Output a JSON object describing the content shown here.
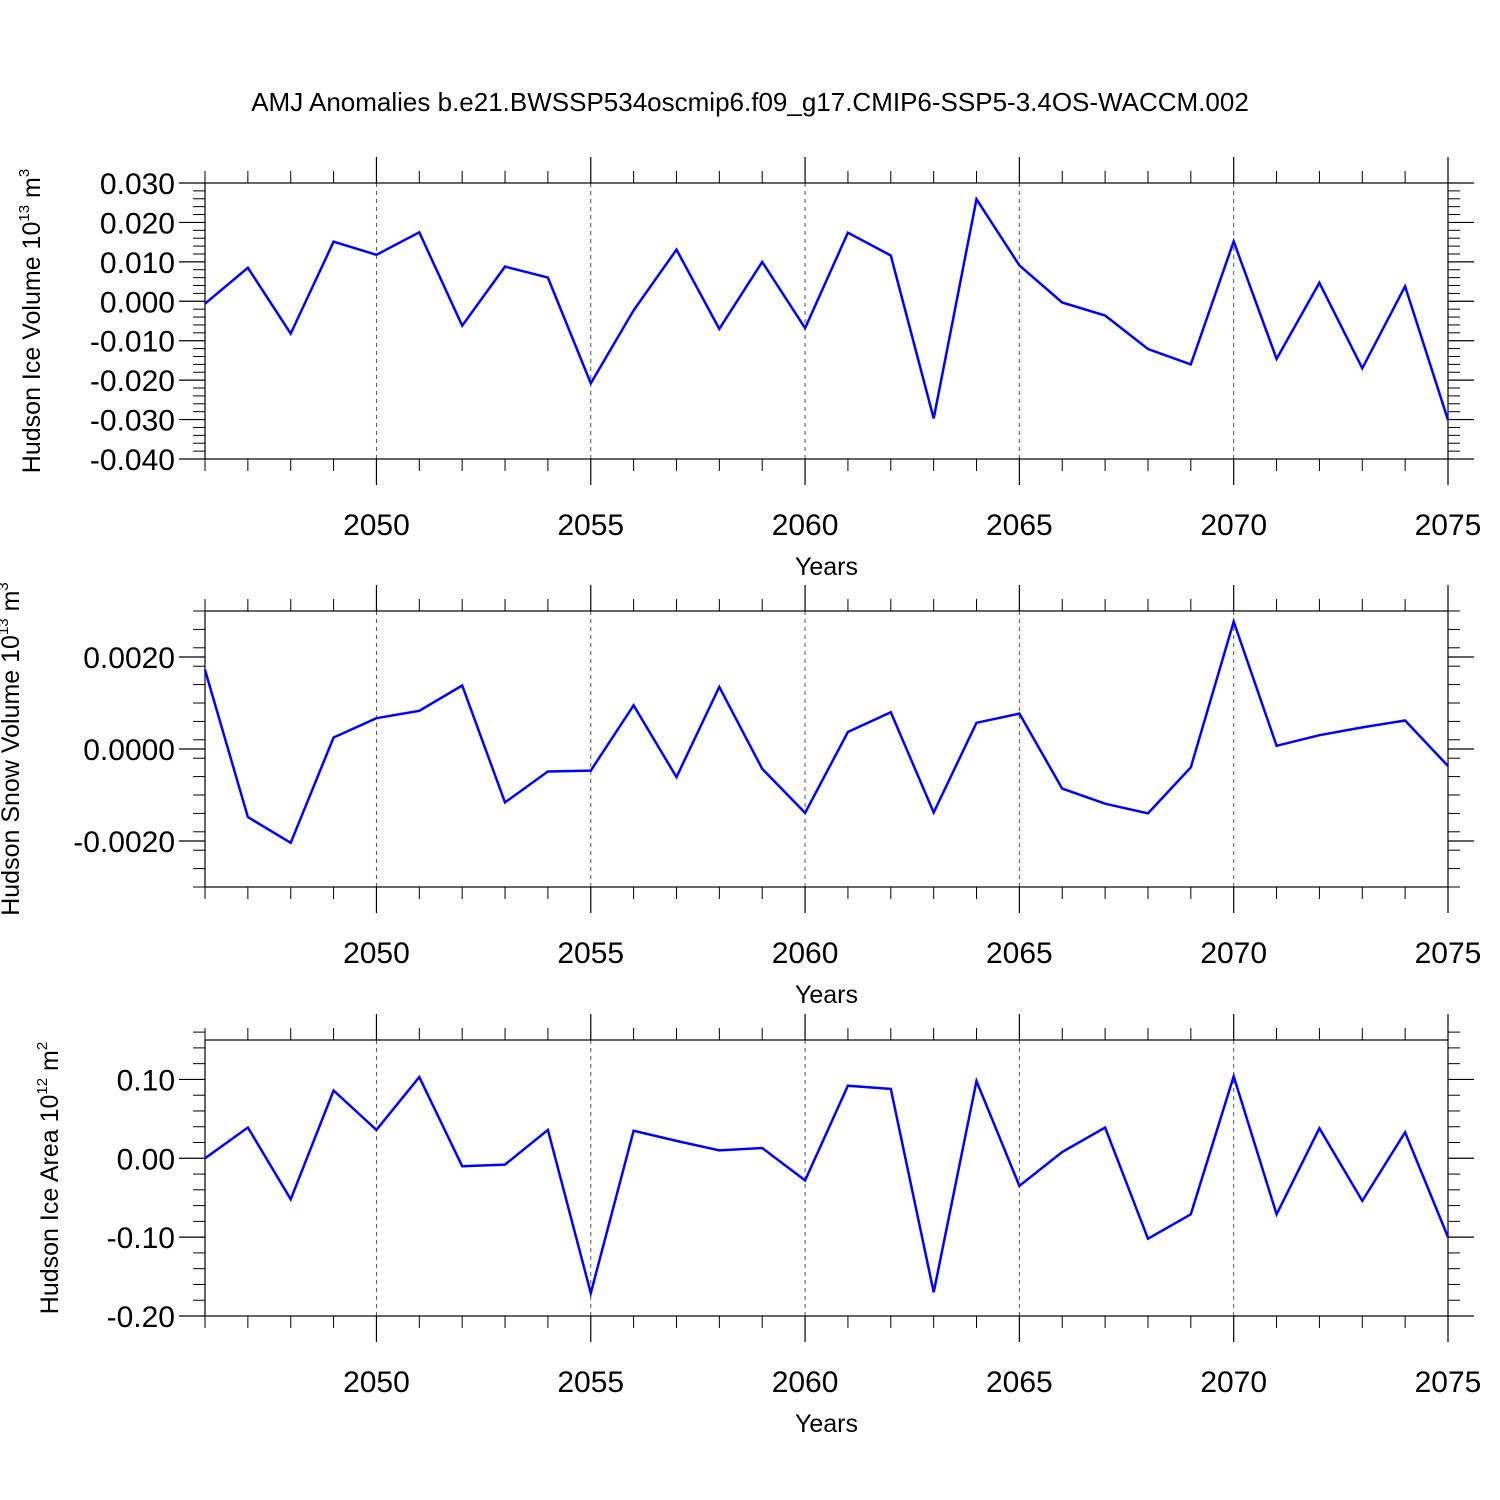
{
  "figure": {
    "title": "AMJ Anomalies b.e21.BWSSP534oscmip6.f09_g17.CMIP6-SSP5-3.4OS-WACCM.002"
  },
  "chart_data": [
    {
      "type": "line",
      "title": "",
      "xlabel": "Years",
      "ylabel": "Hudson Ice Volume 10",
      "ylabel_exponent": "13",
      "ylabel_unit": "m",
      "ylabel_unit_exponent": "3",
      "xlim": [
        2046,
        2075
      ],
      "ylim": [
        -0.04,
        0.03
      ],
      "x_ticks": [
        2050,
        2055,
        2060,
        2065,
        2070,
        2075
      ],
      "x_tick_labels": [
        "2050",
        "2055",
        "2060",
        "2065",
        "2070",
        "2075"
      ],
      "y_ticks": [
        -0.04,
        -0.03,
        -0.02,
        -0.01,
        0.0,
        0.01,
        0.02,
        0.03
      ],
      "y_tick_labels": [
        "-0.040",
        "-0.030",
        "-0.020",
        "-0.010",
        "0.000",
        "0.010",
        "0.020",
        "0.030"
      ],
      "grid": "vertical dashed at major x ticks",
      "line_color": "#0000ff",
      "series": [
        {
          "x": [
            2046,
            2047,
            2048,
            2049,
            2050,
            2051,
            2052,
            2053,
            2054,
            2055,
            2056,
            2057,
            2058,
            2059,
            2060,
            2061,
            2062,
            2063,
            2064,
            2065,
            2066,
            2067,
            2068,
            2069,
            2070,
            2071,
            2072,
            2073,
            2074,
            2075
          ],
          "values": [
            -0.0006,
            0.0085,
            -0.0082,
            0.0151,
            0.0118,
            0.0175,
            -0.0062,
            0.0088,
            0.006,
            -0.0208,
            -0.0023,
            0.0131,
            -0.007,
            0.01,
            -0.0068,
            0.0174,
            0.0116,
            -0.0297,
            0.0259,
            0.0091,
            -0.0003,
            -0.0036,
            -0.0121,
            -0.016,
            0.0152,
            -0.0146,
            0.0047,
            -0.017,
            0.0038,
            -0.0301
          ]
        }
      ]
    },
    {
      "type": "line",
      "title": "",
      "xlabel": "Years",
      "ylabel": "Hudson Snow Volume 10",
      "ylabel_exponent": "13",
      "ylabel_unit": "m",
      "ylabel_unit_exponent": "3",
      "xlim": [
        2046,
        2075
      ],
      "ylim": [
        -0.003,
        0.003
      ],
      "x_ticks": [
        2050,
        2055,
        2060,
        2065,
        2070,
        2075
      ],
      "x_tick_labels": [
        "2050",
        "2055",
        "2060",
        "2065",
        "2070",
        "2075"
      ],
      "y_ticks": [
        -0.002,
        0.0,
        0.002
      ],
      "y_tick_labels": [
        "-0.0020",
        "0.0000",
        "0.0020"
      ],
      "grid": "vertical dashed at major x ticks",
      "line_color": "#0000ff",
      "series": [
        {
          "x": [
            2046,
            2047,
            2048,
            2049,
            2050,
            2051,
            2052,
            2053,
            2054,
            2055,
            2056,
            2057,
            2058,
            2059,
            2060,
            2061,
            2062,
            2063,
            2064,
            2065,
            2066,
            2067,
            2068,
            2069,
            2070,
            2071,
            2072,
            2073,
            2074,
            2075
          ],
          "values": [
            0.00172,
            -0.00148,
            -0.00204,
            0.00025,
            0.00067,
            0.00083,
            0.00138,
            -0.00116,
            -0.00049,
            -0.00047,
            0.00095,
            -0.00061,
            0.00135,
            -0.00043,
            -0.00139,
            0.00037,
            0.0008,
            -0.00138,
            0.00057,
            0.00077,
            -0.00086,
            -0.00119,
            -0.0014,
            -0.0004,
            0.00277,
            7e-05,
            0.0003,
            0.00047,
            0.00062,
            -0.00037
          ]
        }
      ]
    },
    {
      "type": "line",
      "title": "",
      "xlabel": "Years",
      "ylabel": "Hudson Ice Area 10",
      "ylabel_exponent": "12",
      "ylabel_unit": "m",
      "ylabel_unit_exponent": "2",
      "xlim": [
        2046,
        2075
      ],
      "ylim": [
        -0.2,
        0.15
      ],
      "x_ticks": [
        2050,
        2055,
        2060,
        2065,
        2070,
        2075
      ],
      "x_tick_labels": [
        "2050",
        "2055",
        "2060",
        "2065",
        "2070",
        "2075"
      ],
      "y_ticks": [
        -0.2,
        -0.1,
        0.0,
        0.1
      ],
      "y_tick_labels": [
        "-0.20",
        "-0.10",
        "0.00",
        "0.10"
      ],
      "grid": "vertical dashed at major x ticks",
      "line_color": "#0000ff",
      "series": [
        {
          "x": [
            2046,
            2047,
            2048,
            2049,
            2050,
            2051,
            2052,
            2053,
            2054,
            2055,
            2056,
            2057,
            2058,
            2059,
            2060,
            2061,
            2062,
            2063,
            2064,
            2065,
            2066,
            2067,
            2068,
            2069,
            2070,
            2071,
            2072,
            2073,
            2074,
            2075
          ],
          "values": [
            0.0,
            0.039,
            -0.052,
            0.086,
            0.036,
            0.103,
            -0.01,
            -0.008,
            0.036,
            -0.171,
            0.035,
            0.022,
            0.01,
            0.013,
            -0.028,
            0.092,
            0.088,
            -0.17,
            0.098,
            -0.035,
            0.008,
            0.039,
            -0.102,
            -0.071,
            0.104,
            -0.071,
            0.038,
            -0.054,
            0.033,
            -0.1
          ]
        }
      ]
    }
  ]
}
